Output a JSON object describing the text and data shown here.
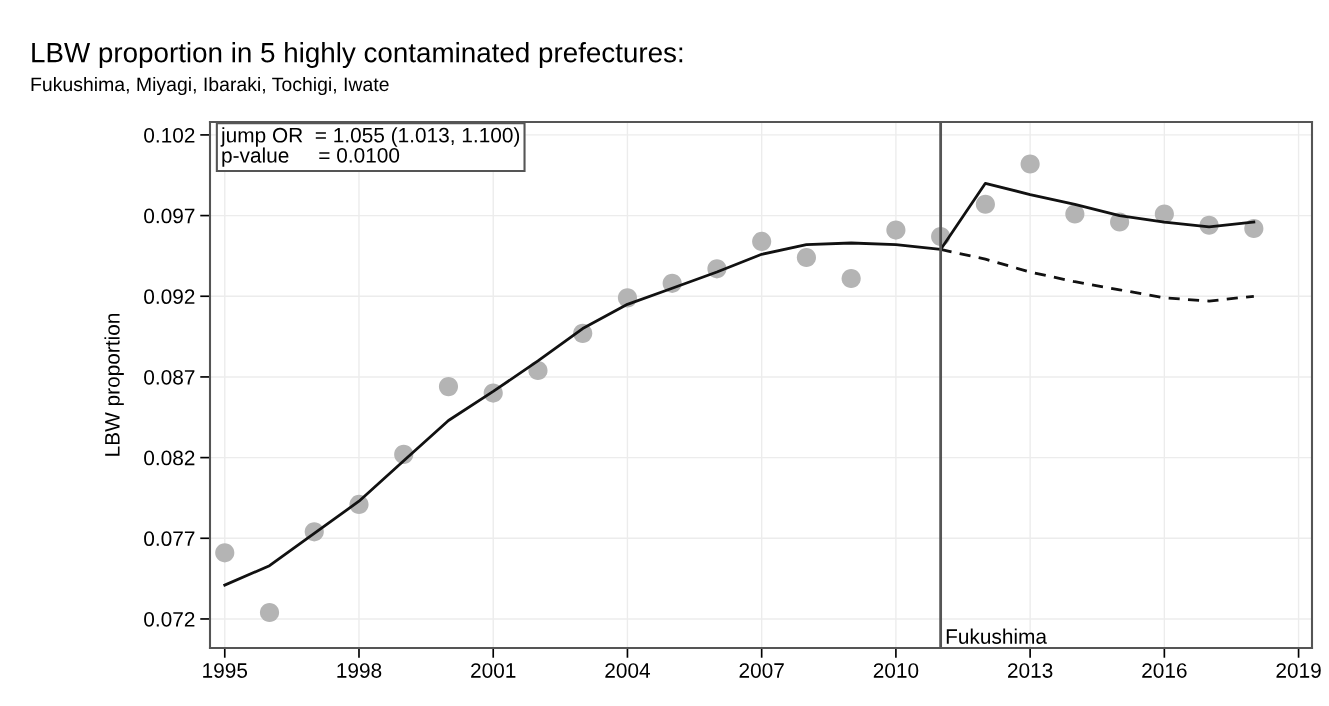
{
  "chart_data": {
    "type": "scatter",
    "title": "LBW proportion in 5 highly contaminated prefectures:",
    "subtitle": "Fukushima, Miyagi, Ibaraki, Tochigi, Iwate",
    "ylabel": "LBW proportion",
    "x": [
      1995,
      1996,
      1997,
      1998,
      1999,
      2000,
      2001,
      2002,
      2003,
      2004,
      2005,
      2006,
      2007,
      2008,
      2009,
      2010,
      2011,
      2012,
      2013,
      2014,
      2015,
      2016,
      2017,
      2018
    ],
    "series": [
      {
        "color": "#b4b4b4",
        "marker": "circle",
        "values": [
          0.0761,
          0.0724,
          0.0774,
          0.0791,
          0.0822,
          0.0864,
          0.086,
          0.0874,
          0.0897,
          0.0919,
          0.0928,
          0.0937,
          0.0954,
          0.0944,
          0.0931,
          0.0961,
          0.0957,
          0.0977,
          0.1002,
          0.0971,
          0.0966,
          0.0971,
          0.0964,
          0.0962
        ]
      },
      {
        "type": "line",
        "color": "#111111",
        "line_style": "solid",
        "marker": "none",
        "values": [
          0.0741,
          0.0753,
          0.0773,
          0.0793,
          0.0818,
          0.0843,
          0.0861,
          0.088,
          0.09,
          0.0915,
          0.0925,
          0.0935,
          0.0946,
          0.0952,
          0.0953,
          0.0952,
          0.0949,
          0.099,
          0.0983,
          0.0977,
          0.097,
          0.0966,
          0.0963,
          0.0966
        ]
      },
      {
        "type": "line",
        "color": "#111111",
        "line_style": "dashed",
        "marker": "none",
        "x": [
          2011,
          2012,
          2013,
          2014,
          2015,
          2016,
          2017,
          2018
        ],
        "values": [
          0.0949,
          0.0943,
          0.0935,
          0.0929,
          0.0924,
          0.0919,
          0.0917,
          0.092
        ]
      }
    ],
    "xlim": [
      1994.67,
      2019.3
    ],
    "xticks": [
      1995,
      1998,
      2001,
      2004,
      2007,
      2010,
      2013,
      2016,
      2019
    ],
    "ylim": [
      0.0702,
      0.1028
    ],
    "yticks": [
      0.072,
      0.077,
      0.082,
      0.087,
      0.092,
      0.097,
      0.102
    ],
    "ref_lines": [
      {
        "axis": "x",
        "value": 2011,
        "label": "Fukushima",
        "color": "#555555",
        "line_style": "solid"
      }
    ],
    "annotations": [
      "jump OR  = 1.055 (1.013, 1.100)\np-value     = 0.0100"
    ],
    "grid": true,
    "legend": false
  }
}
